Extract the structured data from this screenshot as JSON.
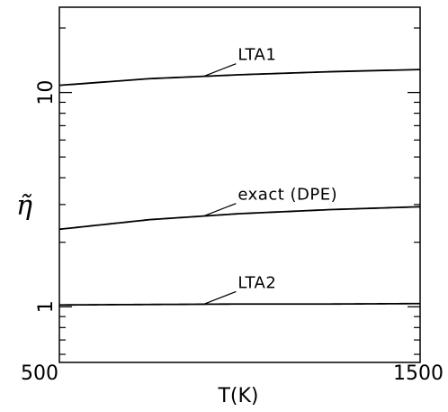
{
  "chart_data": {
    "type": "line",
    "title": "",
    "xlabel": "T(K)",
    "ylabel": "η̃",
    "y_scale": "log",
    "xlim": [
      500,
      1500
    ],
    "ylim": [
      0.55,
      25
    ],
    "x_ticks": [
      500,
      1500
    ],
    "y_ticks": [
      1,
      10
    ],
    "y_tick_labels": [
      "1",
      "10"
    ],
    "x_tick_labels": [
      "500",
      "1500"
    ],
    "grid": false,
    "series": [
      {
        "name": "LTA1",
        "x": [
          500,
          750,
          1000,
          1250,
          1500
        ],
        "y": [
          10.8,
          11.6,
          12.1,
          12.5,
          12.8
        ]
      },
      {
        "name": "exact (DPE)",
        "x": [
          500,
          750,
          1000,
          1250,
          1500
        ],
        "y": [
          2.3,
          2.55,
          2.72,
          2.84,
          2.93
        ]
      },
      {
        "name": "LTA2",
        "x": [
          500,
          750,
          1000,
          1250,
          1500
        ],
        "y": [
          1.02,
          1.025,
          1.03,
          1.03,
          1.035
        ]
      }
    ],
    "annotations": [
      {
        "text": "LTA1",
        "series": "LTA1",
        "at_x": 900
      },
      {
        "text": "exact (DPE)",
        "series": "exact (DPE)",
        "at_x": 900
      },
      {
        "text": "LTA2",
        "series": "LTA2",
        "at_x": 900
      }
    ]
  }
}
